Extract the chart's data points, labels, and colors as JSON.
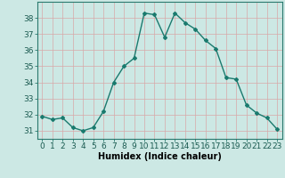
{
  "x": [
    0,
    1,
    2,
    3,
    4,
    5,
    6,
    7,
    8,
    9,
    10,
    11,
    12,
    13,
    14,
    15,
    16,
    17,
    18,
    19,
    20,
    21,
    22,
    23
  ],
  "y": [
    31.9,
    31.7,
    31.8,
    31.2,
    31.0,
    31.2,
    32.2,
    34.0,
    35.0,
    35.5,
    38.3,
    38.2,
    36.8,
    38.3,
    37.7,
    37.3,
    36.6,
    36.1,
    34.3,
    34.2,
    32.6,
    32.1,
    31.8,
    31.1
  ],
  "line_color": "#1a7a6e",
  "marker": "D",
  "markersize": 2.0,
  "linewidth": 1.0,
  "xlabel": "Humidex (Indice chaleur)",
  "ylim": [
    30.5,
    39.0
  ],
  "xlim": [
    -0.5,
    23.5
  ],
  "bg_color": "#cce8e4",
  "grid_color": "#d8a8a8",
  "xlabel_fontsize": 7,
  "tick_fontsize": 6.5
}
